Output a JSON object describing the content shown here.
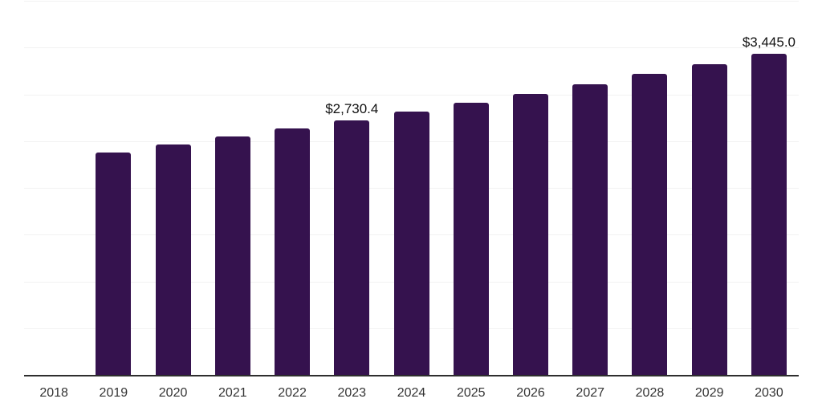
{
  "chart_data": {
    "type": "bar",
    "title": "",
    "xlabel": "",
    "ylabel": "",
    "categories": [
      "2018",
      "2019",
      "2020",
      "2021",
      "2022",
      "2023",
      "2024",
      "2025",
      "2026",
      "2027",
      "2028",
      "2029",
      "2030"
    ],
    "values": [
      null,
      2390.5,
      2471.3,
      2554.9,
      2641.2,
      2730.4,
      2822.6,
      2917.9,
      3016.5,
      3118.4,
      3223.7,
      3332.6,
      3445.0
    ],
    "data_labels": [
      "",
      "",
      "",
      "",
      "",
      "$2,730.4",
      "",
      "",
      "",
      "",
      "",
      "",
      "$3,445.0"
    ],
    "ylim": [
      0,
      4000
    ],
    "gridline_step": 500,
    "grid": "horizontal-only",
    "legend": "none",
    "y_axis_tick_labels": "none",
    "colors": {
      "bar": "#35124E",
      "gridline": "#f2f2f2",
      "axis_line": "#2e2e2e",
      "x_tick_text": "#333333",
      "data_label_text": "#111111",
      "background": "#ffffff"
    }
  }
}
